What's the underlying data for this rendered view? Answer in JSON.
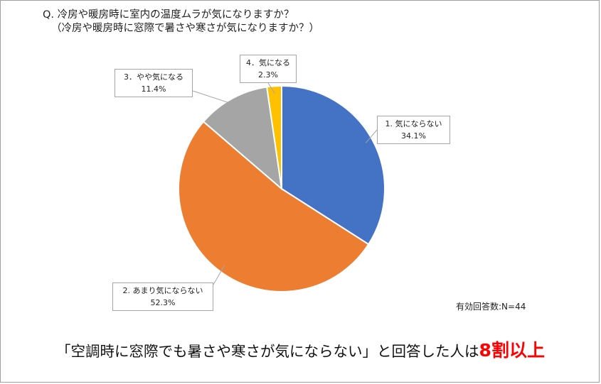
{
  "question": {
    "line1": "Q. 冷房や暖房時に室内の温度ムラが気になりますか？",
    "line2": "（冷房や暖房時に窓際で暑さや寒さが気になりますか？）"
  },
  "chart_data": {
    "type": "pie",
    "title": "",
    "start_angle_deg": 0,
    "direction": "clockwise",
    "slices": [
      {
        "label": "1. 気にならない",
        "value": 34.1,
        "display": "34.1%",
        "color": "#4472c4"
      },
      {
        "label": "2. あまり気にならない",
        "value": 52.3,
        "display": "52.3%",
        "color": "#ed7d31"
      },
      {
        "label": "3．やや気になる",
        "value": 11.4,
        "display": "11.4%",
        "color": "#a5a5a5"
      },
      {
        "label": "4．気になる",
        "value": 2.3,
        "display": "2.3%",
        "color": "#ffc000"
      }
    ]
  },
  "note": "有効回答数:N=44",
  "conclusion": {
    "text": "「空調時に窓際でも暑さや寒さが気にならない」と回答した人は",
    "emphasis": "8割以上"
  }
}
